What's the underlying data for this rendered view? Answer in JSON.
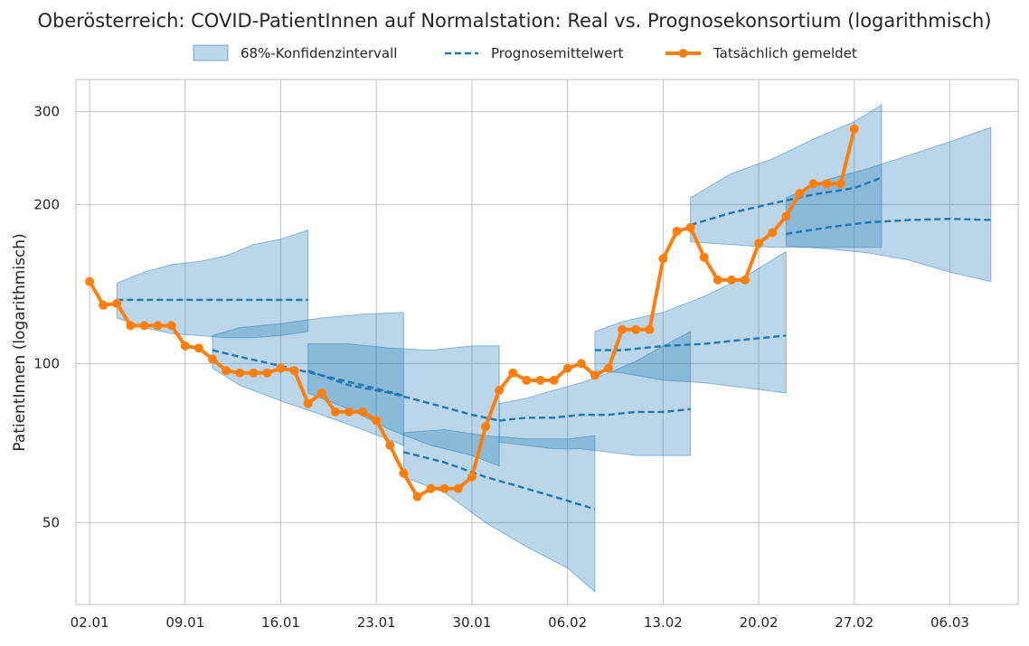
{
  "chart_data": {
    "type": "line",
    "title": "Oberösterreich: COVID-PatientInnen auf Normalstation: Real vs. Prognosekonsortium (logarithmisch)",
    "xlabel": "",
    "ylabel": "PatientInnen (logarithmisch)",
    "yscale": "log",
    "ylim": [
      35,
      345
    ],
    "xlim": [
      "2022-01-01",
      "2022-03-11"
    ],
    "grid": true,
    "legend_position": "top-center",
    "x_ticks": [
      "02.01",
      "09.01",
      "16.01",
      "23.01",
      "30.01",
      "06.02",
      "13.02",
      "20.02",
      "27.02",
      "06.03"
    ],
    "x_tick_dates": [
      "2022-01-02",
      "2022-01-09",
      "2022-01-16",
      "2022-01-23",
      "2022-01-30",
      "2022-02-06",
      "2022-02-13",
      "2022-02-20",
      "2022-02-27",
      "2022-03-06"
    ],
    "y_ticks": [
      50,
      100,
      200,
      300
    ],
    "legend": [
      {
        "label": "68%-Konfidenzintervall",
        "kind": "band"
      },
      {
        "label": "Prognosemittelwert",
        "kind": "dashed"
      },
      {
        "label": "Tatsächlich gemeldet",
        "kind": "line-marker"
      }
    ],
    "colors": {
      "band": "#1f77b4",
      "forecast": "#1f77b4",
      "actual": "#ff7f0e",
      "grid": "#cccccc",
      "frame": "#cccccc"
    },
    "series": [
      {
        "name": "Tatsächlich gemeldet",
        "x": [
          "2022-01-02",
          "2022-01-03",
          "2022-01-04",
          "2022-01-05",
          "2022-01-06",
          "2022-01-07",
          "2022-01-08",
          "2022-01-09",
          "2022-01-10",
          "2022-01-11",
          "2022-01-12",
          "2022-01-13",
          "2022-01-14",
          "2022-01-15",
          "2022-01-16",
          "2022-01-17",
          "2022-01-18",
          "2022-01-19",
          "2022-01-20",
          "2022-01-21",
          "2022-01-22",
          "2022-01-23",
          "2022-01-24",
          "2022-01-25",
          "2022-01-26",
          "2022-01-27",
          "2022-01-28",
          "2022-01-29",
          "2022-01-30",
          "2022-01-31",
          "2022-02-01",
          "2022-02-02",
          "2022-02-03",
          "2022-02-04",
          "2022-02-05",
          "2022-02-06",
          "2022-02-07",
          "2022-02-08",
          "2022-02-09",
          "2022-02-10",
          "2022-02-11",
          "2022-02-12",
          "2022-02-13",
          "2022-02-14",
          "2022-02-15",
          "2022-02-16",
          "2022-02-17",
          "2022-02-18",
          "2022-02-19",
          "2022-02-20",
          "2022-02-21",
          "2022-02-22",
          "2022-02-23",
          "2022-02-24",
          "2022-02-25",
          "2022-02-26",
          "2022-02-27"
        ],
        "values": [
          143,
          129,
          130,
          118,
          118,
          118,
          118,
          108,
          107,
          102,
          97,
          96,
          96,
          96,
          98,
          97,
          84,
          88,
          81,
          81,
          81,
          78,
          70,
          62,
          56,
          58,
          58,
          58,
          61,
          76,
          89,
          96,
          93,
          93,
          93,
          98,
          100,
          95,
          98,
          116,
          116,
          116,
          158,
          178,
          181,
          159,
          144,
          144,
          144,
          169,
          177,
          190,
          210,
          219,
          219,
          219,
          278
        ]
      },
      {
        "name": "Prognosemittelwert",
        "segments": [
          {
            "x": [
              "2022-01-04",
              "2022-01-18"
            ],
            "values": [
              132,
              132
            ]
          },
          {
            "x": [
              "2022-01-11",
              "2022-01-13",
              "2022-01-16",
              "2022-01-19",
              "2022-01-22",
              "2022-01-25"
            ],
            "values": [
              106,
              103,
              99,
              95,
              91,
              87
            ]
          },
          {
            "x": [
              "2022-01-18",
              "2022-01-21",
              "2022-01-24",
              "2022-01-27",
              "2022-01-30",
              "2022-02-01"
            ],
            "values": [
              97,
              91,
              88,
              84,
              80,
              78
            ]
          },
          {
            "x": [
              "2022-01-25",
              "2022-01-28",
              "2022-01-31",
              "2022-02-03",
              "2022-02-06",
              "2022-02-08"
            ],
            "values": [
              68,
              65,
              61,
              58,
              55,
              53
            ]
          },
          {
            "x": [
              "2022-02-01",
              "2022-02-03",
              "2022-02-05",
              "2022-02-07",
              "2022-02-09",
              "2022-02-11",
              "2022-02-13",
              "2022-02-15"
            ],
            "values": [
              78,
              79,
              79,
              80,
              80,
              81,
              81,
              82
            ]
          },
          {
            "x": [
              "2022-02-08",
              "2022-02-10",
              "2022-02-13",
              "2022-02-16",
              "2022-02-19",
              "2022-02-22"
            ],
            "values": [
              106,
              106,
              108,
              109,
              111,
              113
            ]
          },
          {
            "x": [
              "2022-02-15",
              "2022-02-18",
              "2022-02-21",
              "2022-02-24",
              "2022-02-27",
              "2022-03-01"
            ],
            "values": [
              183,
              193,
              201,
              209,
              215,
              225
            ]
          },
          {
            "x": [
              "2022-02-22",
              "2022-02-25",
              "2022-02-28",
              "2022-03-03",
              "2022-03-06",
              "2022-03-09"
            ],
            "values": [
              176,
              181,
              185,
              187,
              188,
              187
            ]
          }
        ]
      },
      {
        "name": "68%-Konfidenzintervall",
        "bands": [
          {
            "x": [
              "2022-01-04",
              "2022-01-06",
              "2022-01-08",
              "2022-01-10",
              "2022-01-12",
              "2022-01-14",
              "2022-01-16",
              "2022-01-18"
            ],
            "upper": [
              142,
              149,
              154,
              156,
              160,
              168,
              172,
              179
            ],
            "lower": [
              122,
              117,
              114,
              113,
              112,
              112,
              113,
              115
            ]
          },
          {
            "x": [
              "2022-01-11",
              "2022-01-13",
              "2022-01-16",
              "2022-01-19",
              "2022-01-22",
              "2022-01-25"
            ],
            "upper": [
              113,
              117,
              119,
              122,
              124,
              125
            ],
            "lower": [
              98,
              91,
              85,
              80,
              75,
              70
            ]
          },
          {
            "x": [
              "2022-01-18",
              "2022-01-21",
              "2022-01-24",
              "2022-01-27",
              "2022-01-30",
              "2022-02-01"
            ],
            "upper": [
              109,
              109,
              107,
              106,
              108,
              108
            ],
            "lower": [
              88,
              82,
              75,
              70,
              67,
              64
            ]
          },
          {
            "x": [
              "2022-01-25",
              "2022-01-28",
              "2022-01-31",
              "2022-02-03",
              "2022-02-06",
              "2022-02-08"
            ],
            "upper": [
              74,
              75,
              73,
              72,
              72,
              73
            ],
            "lower": [
              61,
              57,
              50,
              45,
              41,
              37
            ]
          },
          {
            "x": [
              "2022-02-01",
              "2022-02-03",
              "2022-02-05",
              "2022-02-07",
              "2022-02-09",
              "2022-02-11",
              "2022-02-13",
              "2022-02-15"
            ],
            "upper": [
              84,
              86,
              89,
              92,
              96,
              101,
              108,
              115
            ],
            "lower": [
              71,
              70,
              69,
              69,
              68,
              67,
              67,
              67
            ]
          },
          {
            "x": [
              "2022-02-08",
              "2022-02-10",
              "2022-02-13",
              "2022-02-16",
              "2022-02-19",
              "2022-02-22"
            ],
            "upper": [
              115,
              120,
              125,
              134,
              146,
              163
            ],
            "lower": [
              97,
              96,
              93,
              92,
              90,
              88
            ]
          },
          {
            "x": [
              "2022-02-15",
              "2022-02-18",
              "2022-02-21",
              "2022-02-24",
              "2022-02-27",
              "2022-03-01"
            ],
            "upper": [
              206,
              229,
              244,
              266,
              287,
              309
            ],
            "lower": [
              170,
              168,
              166,
              166,
              166,
              166
            ]
          },
          {
            "x": [
              "2022-02-22",
              "2022-02-25",
              "2022-02-28",
              "2022-03-03",
              "2022-03-06",
              "2022-03-09"
            ],
            "upper": [
              206,
              223,
              234,
              248,
              263,
              280
            ],
            "lower": [
              167,
              165,
              162,
              157,
              149,
              143
            ]
          }
        ]
      }
    ]
  }
}
